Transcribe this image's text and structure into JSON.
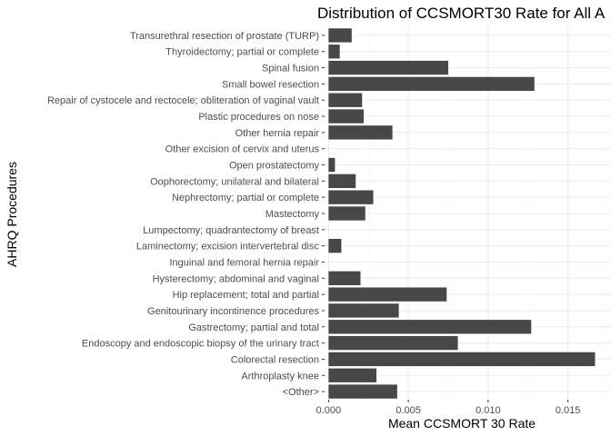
{
  "chart_data": {
    "type": "bar",
    "orientation": "horizontal",
    "title": "Distribution of CCSMORT30 Rate for All A",
    "xlabel": "Mean CCSMORT 30 Rate",
    "ylabel": "AHRQ Procedures",
    "xlim": [
      -0.00025,
      0.0177
    ],
    "x_ticks": [
      "0.000",
      "0.005",
      "0.010",
      "0.015"
    ],
    "x_tick_values": [
      0,
      0.005,
      0.01,
      0.015
    ],
    "grid": true,
    "bar_color": "#474747",
    "categories": [
      "Transurethral resection of prostate (TURP)",
      "Thyroidectomy; partial or complete",
      "Spinal fusion",
      "Small bowel resection",
      "Repair of cystocele and rectocele; obliteration of vaginal vault",
      "Plastic procedures on nose",
      "Other hernia repair",
      "Other excision of cervix and uterus",
      "Open prostatectomy",
      "Oophorectomy; unilateral and bilateral",
      "Nephrectomy; partial or complete",
      "Mastectomy",
      "Lumpectomy; quadrantectomy of breast",
      "Laminectomy; excision intervertebral disc",
      "Inguinal and femoral hernia repair",
      "Hysterectomy; abdominal and vaginal",
      "Hip replacement; total and partial",
      "Genitourinary incontinence procedures",
      "Gastrectomy; partial and total",
      "Endoscopy and endoscopic biopsy of the urinary tract",
      "Colorectal resection",
      "Arthroplasty knee",
      "<Other>"
    ],
    "values": [
      0.00145,
      0.0007,
      0.0075,
      0.0129,
      0.0021,
      0.0022,
      0.004,
      0.0,
      0.0004,
      0.0017,
      0.0028,
      0.0023,
      0.0,
      0.0008,
      0.0,
      0.002,
      0.0074,
      0.0044,
      0.0127,
      0.0081,
      0.0167,
      0.003,
      0.0043
    ]
  }
}
